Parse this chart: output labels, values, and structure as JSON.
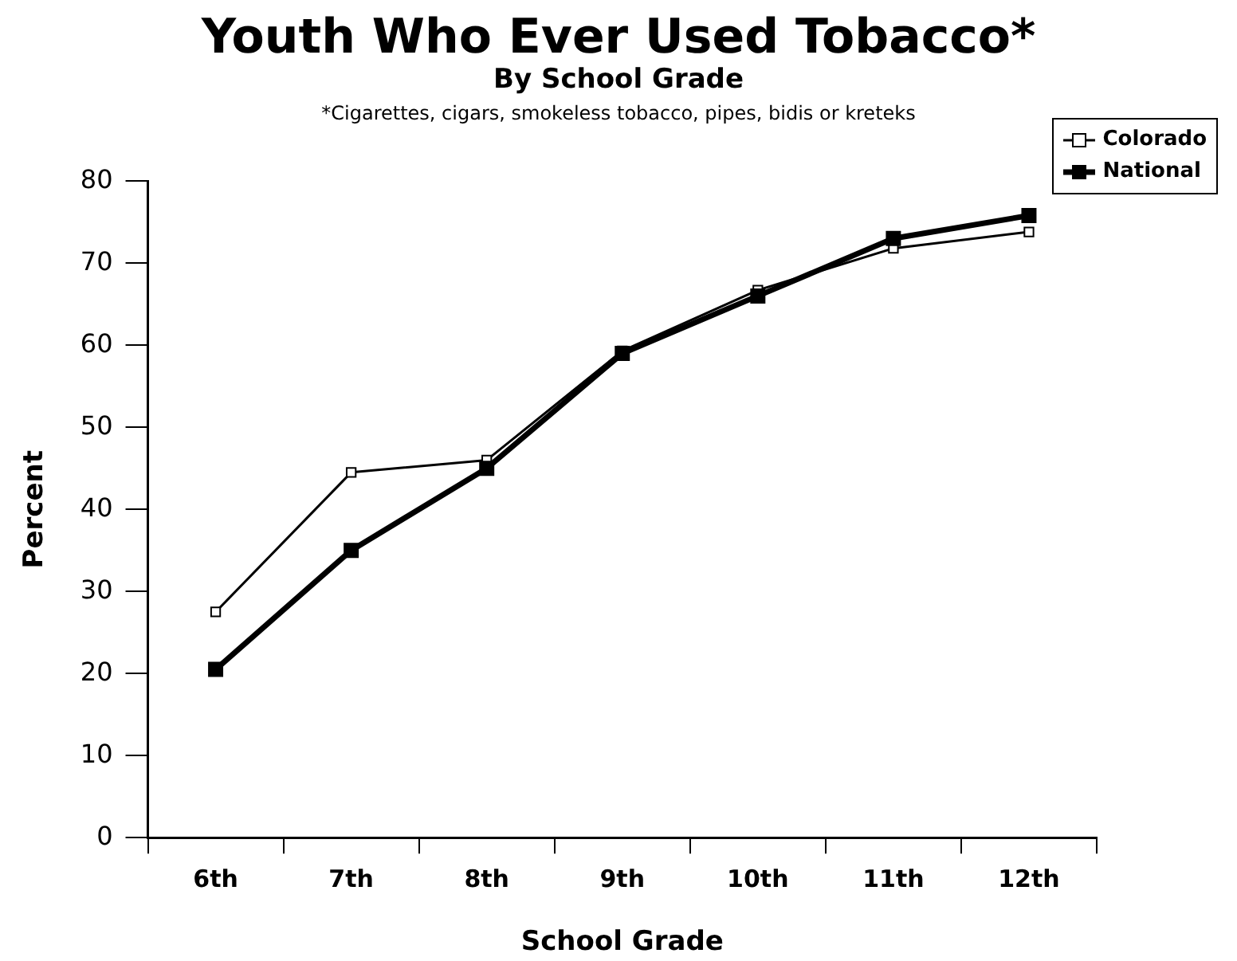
{
  "chart_data": {
    "type": "line",
    "title": "Youth Who Ever Used Tobacco*",
    "subtitle": "By School Grade",
    "annotations": [
      "*Cigarettes, cigars, smokeless tobacco, pipes, bidis or kreteks"
    ],
    "xlabel": "School Grade",
    "ylabel": "Percent",
    "categories": [
      "6th",
      "7th",
      "8th",
      "9th",
      "10th",
      "11th",
      "12th"
    ],
    "series": [
      {
        "name": "Colorado",
        "color": "#000000",
        "values": [
          27.5,
          44.5,
          46,
          59.3,
          66.7,
          71.8,
          73.8
        ]
      },
      {
        "name": "National",
        "color": "#000000",
        "values": [
          20.5,
          35,
          45,
          59,
          66,
          73,
          75.8
        ]
      }
    ],
    "ylim": [
      0,
      80
    ],
    "yticks": [
      0,
      10,
      20,
      30,
      40,
      50,
      60,
      70,
      80
    ],
    "grid": false,
    "legend": "top right",
    "marker": "square",
    "line_style": "solid"
  }
}
